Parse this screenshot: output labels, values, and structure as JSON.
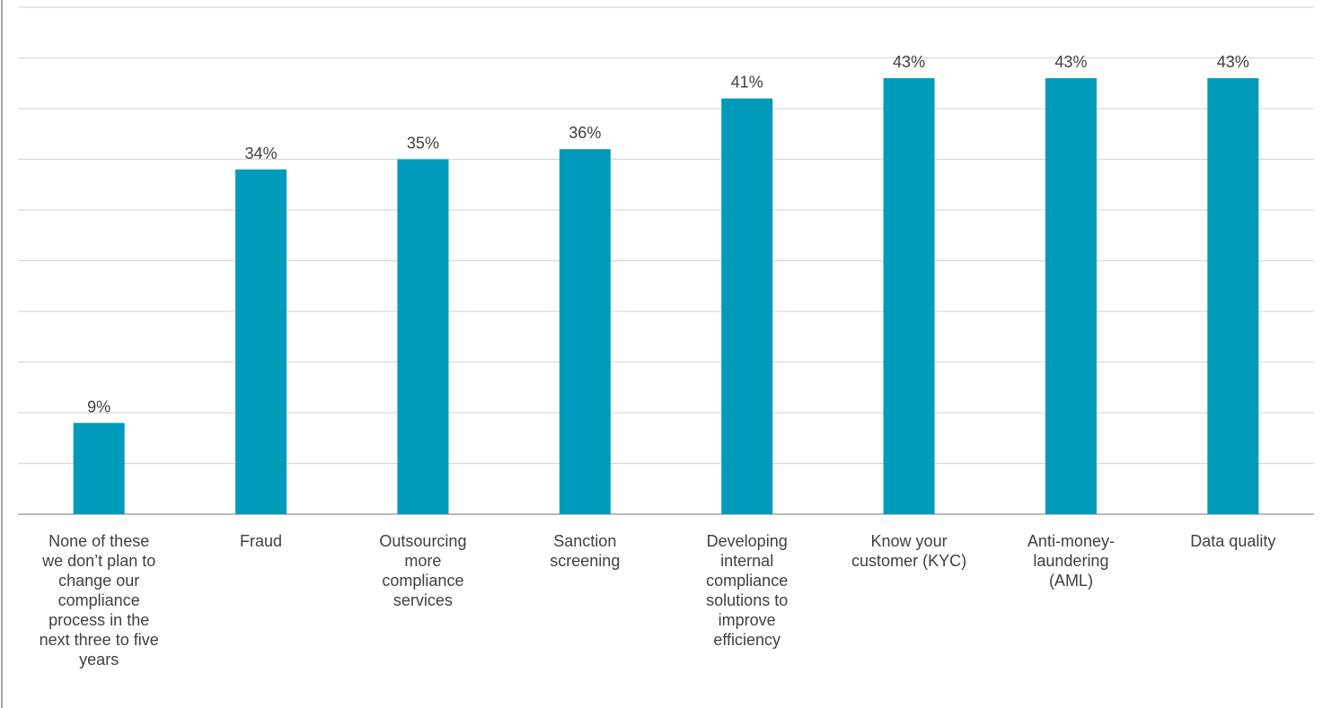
{
  "chart_data": {
    "type": "bar",
    "title": "",
    "xlabel": "",
    "ylabel": "",
    "categories": [
      "None of these we don’t plan to change our compliance process in the next three to five years",
      "Fraud",
      "Outsourcing more compliance services",
      "Sanction screening",
      "Developing internal compliance solutions to improve efficiency",
      "Know your customer (KYC)",
      "Anti-money-laundering (AML)",
      "Data quality"
    ],
    "category_lines": [
      [
        "None of these",
        "we don’t plan to",
        "change our",
        "compliance",
        "process in the",
        "next three to five",
        "years"
      ],
      [
        "Fraud"
      ],
      [
        "Outsourcing",
        "more",
        "compliance",
        "services"
      ],
      [
        "Sanction",
        "screening"
      ],
      [
        "Developing",
        "internal",
        "compliance",
        "solutions to",
        "improve",
        "efficiency"
      ],
      [
        "Know your",
        "customer (KYC)"
      ],
      [
        "Anti-money-",
        "laundering",
        "(AML)"
      ],
      [
        "Data quality"
      ]
    ],
    "values": [
      9,
      34,
      35,
      36,
      41,
      43,
      43,
      43
    ],
    "data_labels": [
      "9%",
      "34%",
      "35%",
      "36%",
      "41%",
      "43%",
      "43%",
      "43%"
    ],
    "ylim": [
      0,
      50
    ],
    "y_gridlines": [
      5,
      10,
      15,
      20,
      25,
      30,
      35,
      40,
      45,
      50
    ],
    "grid": true,
    "legend": "none",
    "colors": {
      "bar": "#009ABB",
      "grid": "#D9D9D9",
      "axis": "#A6A6A6",
      "left_border": "#8C8C8C",
      "text": "#404040"
    }
  }
}
